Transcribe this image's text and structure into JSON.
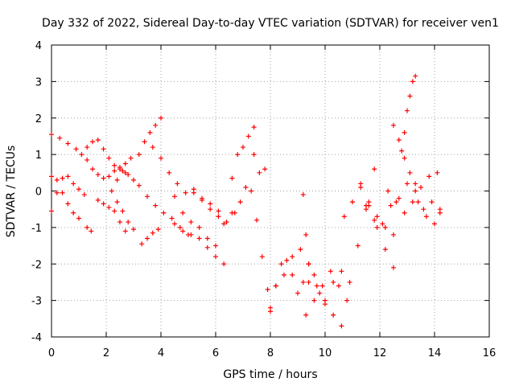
{
  "chart_data": {
    "type": "scatter",
    "title": "Day 332 of 2022, Sidereal Day-to-day VTEC variation (SDTVAR) for receiver ven1",
    "xlabel": "GPS time / hours",
    "ylabel": "SDTVAR / TECUs",
    "xlim": [
      0,
      16
    ],
    "ylim": [
      -4,
      4
    ],
    "xticks": [
      "0",
      "2",
      "4",
      "6",
      "8",
      "10",
      "12",
      "14",
      "16"
    ],
    "yticks": [
      "-4",
      "-3",
      "-2",
      "-1",
      "0",
      "1",
      "2",
      "3",
      "4"
    ],
    "grid": true,
    "marker": "+",
    "color": "#ff0000",
    "series": [
      {
        "x": [
          0.0,
          0.3,
          0.6,
          0.9,
          1.1,
          1.3
        ],
        "y": [
          1.55,
          1.45,
          1.3,
          1.15,
          1.0,
          0.85
        ]
      },
      {
        "x": [
          0.0,
          0.2,
          0.4,
          0.6,
          0.8,
          1.0,
          1.2
        ],
        "y": [
          -0.55,
          -0.05,
          0.35,
          0.4,
          0.2,
          0.05,
          -0.1
        ]
      },
      {
        "x": [
          0.0,
          0.2,
          0.4,
          0.6,
          0.8,
          1.0
        ],
        "y": [
          0.4,
          0.3,
          -0.05,
          -0.35,
          -0.6,
          -0.75
        ]
      },
      {
        "x": [
          1.3,
          1.45
        ],
        "y": [
          -1.0,
          -1.1
        ]
      },
      {
        "x": [
          1.3,
          1.5,
          1.7,
          1.9,
          2.1,
          2.3,
          2.5,
          2.7
        ],
        "y": [
          1.2,
          1.35,
          1.4,
          1.15,
          0.9,
          0.7,
          0.6,
          0.5
        ]
      },
      {
        "x": [
          1.5,
          1.7,
          1.9,
          2.1,
          2.3,
          2.5,
          2.7,
          2.9
        ],
        "y": [
          0.6,
          0.45,
          0.35,
          0.4,
          0.55,
          0.65,
          0.75,
          0.9
        ]
      },
      {
        "x": [
          1.7,
          1.9,
          2.1,
          2.3,
          2.5,
          2.7
        ],
        "y": [
          -0.25,
          -0.35,
          -0.45,
          -0.55,
          -0.85,
          -1.1
        ]
      },
      {
        "x": [
          2.2,
          2.4,
          2.6,
          2.8,
          3.0
        ],
        "y": [
          0.0,
          -0.3,
          -0.55,
          -0.85,
          -1.05
        ]
      },
      {
        "x": [
          2.4,
          2.6,
          2.8,
          3.0
        ],
        "y": [
          0.3,
          0.55,
          0.45,
          0.3
        ]
      },
      {
        "x": [
          3.2,
          3.4,
          3.6,
          3.8,
          4.0
        ],
        "y": [
          1.0,
          1.35,
          1.6,
          1.8,
          2.0
        ]
      },
      {
        "x": [
          3.3,
          3.5,
          3.7,
          3.9
        ],
        "y": [
          -1.45,
          -1.3,
          -1.15,
          -1.05
        ]
      },
      {
        "x": [
          3.2,
          3.5,
          3.8,
          4.1,
          4.4,
          4.7,
          5.0
        ],
        "y": [
          0.15,
          -0.15,
          -0.4,
          -0.6,
          -0.75,
          -1.0,
          -1.2
        ]
      },
      {
        "x": [
          3.7,
          4.0,
          4.3,
          4.6,
          4.9,
          5.2,
          5.5,
          5.8,
          6.1
        ],
        "y": [
          1.2,
          0.9,
          0.5,
          0.2,
          -0.05,
          -0.05,
          -0.2,
          -0.35,
          -0.55
        ]
      },
      {
        "x": [
          4.5,
          4.8,
          5.1,
          5.4,
          5.7,
          6.0,
          6.3
        ],
        "y": [
          -0.9,
          -1.1,
          -1.2,
          -1.3,
          -1.55,
          -1.8,
          -2.0
        ]
      },
      {
        "x": [
          4.5,
          4.8,
          5.1,
          5.4,
          5.7,
          6.0
        ],
        "y": [
          -0.15,
          -0.6,
          -0.85,
          -1.0,
          -1.3,
          -1.5
        ]
      },
      {
        "x": [
          5.2,
          5.5,
          5.8,
          6.1,
          6.4,
          6.7
        ],
        "y": [
          0.05,
          -0.25,
          -0.5,
          -0.7,
          -0.85,
          -0.6
        ]
      },
      {
        "x": [
          6.3,
          6.6,
          6.9,
          7.1,
          7.3,
          7.5,
          7.7,
          7.9,
          8.0
        ],
        "y": [
          -0.9,
          -0.6,
          -0.3,
          0.1,
          0.0,
          -0.8,
          -1.8,
          -2.7,
          -3.2
        ]
      },
      {
        "x": [
          6.6,
          6.8,
          7.0,
          7.2,
          7.4
        ],
        "y": [
          0.35,
          1.0,
          1.2,
          1.5,
          1.75
        ]
      },
      {
        "x": [
          7.4,
          7.6,
          7.8
        ],
        "y": [
          1.0,
          0.5,
          0.6
        ]
      },
      {
        "x": [
          8.0,
          8.2,
          8.4,
          8.6,
          8.8,
          9.0,
          9.2,
          9.4,
          9.6,
          9.8
        ],
        "y": [
          -3.3,
          -2.6,
          -2.0,
          -1.9,
          -2.3,
          -2.8,
          -2.5,
          -2.0,
          -2.3,
          -2.8
        ]
      },
      {
        "x": [
          8.2,
          8.5,
          8.8,
          9.1,
          9.4,
          9.7,
          10.0,
          10.3,
          10.6
        ],
        "y": [
          -2.6,
          -2.3,
          -1.8,
          -1.6,
          -2.0,
          -2.6,
          -3.1,
          -3.4,
          -3.7
        ]
      },
      {
        "x": [
          9.2,
          9.3,
          9.4
        ],
        "y": [
          -0.1,
          -1.2,
          -2.5
        ]
      },
      {
        "x": [
          9.3,
          9.6,
          9.9,
          10.2,
          10.5,
          10.8
        ],
        "y": [
          -3.4,
          -3.0,
          -2.6,
          -2.2,
          -2.6,
          -3.0
        ]
      },
      {
        "x": [
          10.0,
          10.3,
          10.6,
          10.9,
          11.2,
          11.5,
          11.8
        ],
        "y": [
          -3.0,
          -2.5,
          -2.2,
          -2.5,
          -1.5,
          -0.4,
          0.6
        ]
      },
      {
        "x": [
          10.7,
          11.0,
          11.3,
          11.6,
          11.9,
          12.2,
          12.5
        ],
        "y": [
          -0.7,
          -0.3,
          0.1,
          -0.3,
          -0.7,
          -1.0,
          -1.2
        ]
      },
      {
        "x": [
          11.3,
          11.6,
          11.9,
          12.2,
          12.5
        ],
        "y": [
          0.2,
          -0.4,
          -1.0,
          -1.6,
          -2.1
        ]
      },
      {
        "x": [
          11.5,
          11.8,
          12.1,
          12.4,
          12.7,
          13.0,
          13.3,
          13.6,
          13.9,
          14.2
        ],
        "y": [
          -0.5,
          -0.8,
          -0.9,
          -0.4,
          -0.2,
          0.2,
          0.0,
          -0.5,
          -0.3,
          -0.6
        ]
      },
      {
        "x": [
          12.3,
          12.6,
          12.9,
          13.2,
          13.5,
          13.8,
          14.1
        ],
        "y": [
          0.0,
          -0.3,
          -0.6,
          -0.3,
          0.1,
          0.4,
          0.5
        ]
      },
      {
        "x": [
          12.8,
          12.9,
          13.0,
          13.1,
          13.2,
          13.3
        ],
        "y": [
          1.1,
          1.6,
          2.2,
          2.6,
          3.0,
          3.15
        ]
      },
      {
        "x": [
          12.5,
          12.7,
          12.9,
          13.1,
          13.3
        ],
        "y": [
          1.8,
          1.4,
          0.9,
          0.5,
          0.2
        ]
      },
      {
        "x": [
          13.4,
          13.7,
          14.0,
          14.2
        ],
        "y": [
          -0.3,
          -0.7,
          -0.9,
          -0.5
        ]
      }
    ]
  }
}
